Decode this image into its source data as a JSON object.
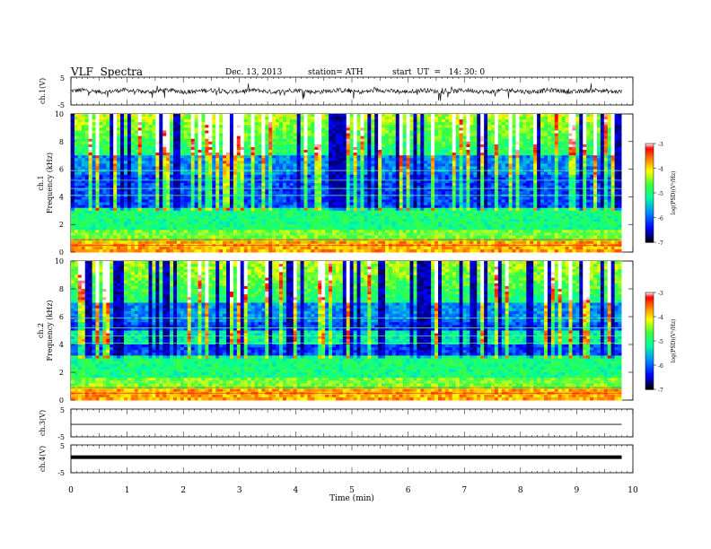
{
  "header": {
    "title": "VLF  Spectra",
    "date": "Dec. 13, 2013",
    "station": "station= ATH",
    "start": "start  UT  =   14: 30: 0"
  },
  "chart_data": [
    {
      "type": "line",
      "name": "ch1-waveform",
      "ylabel": "ch.1(V)",
      "yticks": [
        "5",
        "-5"
      ],
      "ylim": [
        -5,
        5
      ],
      "xlim": [
        0,
        10
      ],
      "data_end_x": 9.8,
      "amplitude_note": "noisy trace near 0 with spikes"
    },
    {
      "type": "heatmap",
      "name": "ch1-spectrogram",
      "ylabel": "ch.1\nFrequency  (kHz)",
      "yticks": [
        "0",
        "2",
        "4",
        "6",
        "8",
        "10"
      ],
      "ylim": [
        0,
        10
      ],
      "xlim": [
        0,
        10
      ],
      "data_end_x": 9.8,
      "colorbar": {
        "label": "log(PSD)(V²/Hz)",
        "ticks": [
          "-3",
          "-4",
          "-5",
          "-6",
          "-7"
        ],
        "range": [
          -7,
          -3
        ]
      }
    },
    {
      "type": "heatmap",
      "name": "ch2-spectrogram",
      "ylabel": "ch.2\nFrequency  (kHz)",
      "yticks": [
        "0",
        "2",
        "4",
        "6",
        "8",
        "10"
      ],
      "ylim": [
        0,
        10
      ],
      "xlim": [
        0,
        10
      ],
      "data_end_x": 9.8,
      "colorbar": {
        "label": "log(PSD)(V²/Hz)",
        "ticks": [
          "-3",
          "-4",
          "-5",
          "-6",
          "-7"
        ],
        "range": [
          -7,
          -3
        ]
      }
    },
    {
      "type": "line",
      "name": "ch3-waveform",
      "ylabel": "ch.3(V)",
      "yticks": [
        "5",
        "-5"
      ],
      "ylim": [
        -5,
        5
      ],
      "xlim": [
        0,
        10
      ],
      "data_end_x": 9.8,
      "level_value": -0.5
    },
    {
      "type": "line",
      "name": "ch4-waveform",
      "ylabel": "ch.4(V)",
      "yticks": [
        "5",
        "-5"
      ],
      "ylim": [
        -5,
        5
      ],
      "xlim": [
        0,
        10
      ],
      "data_end_x": 9.8,
      "level_value": 0.6
    }
  ],
  "xaxis": {
    "label": "Time  (min)",
    "ticks": [
      "0",
      "1",
      "2",
      "3",
      "4",
      "5",
      "6",
      "7",
      "8",
      "9",
      "10"
    ]
  },
  "colors": {
    "colormap": [
      "#000000",
      "#0000ff",
      "#00a0ff",
      "#00ffa0",
      "#30ff30",
      "#ffff00",
      "#ff8000",
      "#ff0000",
      "#ffffff"
    ]
  }
}
